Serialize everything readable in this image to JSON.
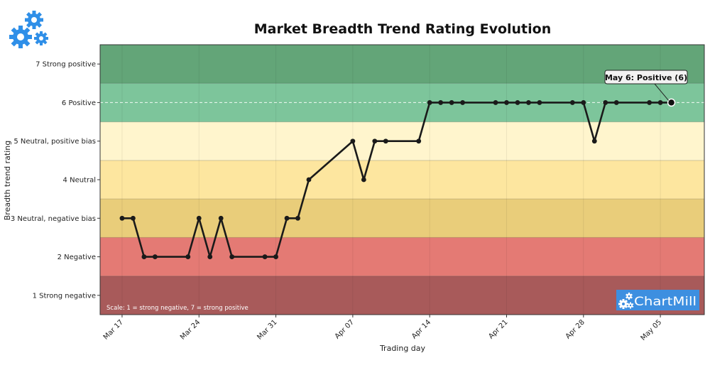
{
  "chart_data": {
    "type": "line",
    "title": "Market Breadth Trend Rating Evolution",
    "xlabel": "Trading day",
    "ylabel": "Breadth trend rating",
    "ylim": [
      0.5,
      7.5
    ],
    "yticks": [
      {
        "value": 1,
        "label": "1  Strong negative"
      },
      {
        "value": 2,
        "label": "2  Negative"
      },
      {
        "value": 3,
        "label": "3  Neutral, negative bias"
      },
      {
        "value": 4,
        "label": "4  Neutral"
      },
      {
        "value": 5,
        "label": "5  Neutral, positive bias"
      },
      {
        "value": 6,
        "label": "6  Positive"
      },
      {
        "value": 7,
        "label": "7  Strong positive"
      }
    ],
    "xticks": [
      {
        "date": "2025-03-17",
        "label": "Mar 17"
      },
      {
        "date": "2025-03-24",
        "label": "Mar 24"
      },
      {
        "date": "2025-03-31",
        "label": "Mar 31"
      },
      {
        "date": "2025-04-07",
        "label": "Apr 07"
      },
      {
        "date": "2025-04-14",
        "label": "Apr 14"
      },
      {
        "date": "2025-04-21",
        "label": "Apr 21"
      },
      {
        "date": "2025-04-28",
        "label": "Apr 28"
      },
      {
        "date": "2025-05-05",
        "label": "May 05"
      }
    ],
    "xlim": [
      "2025-03-15",
      "2025-05-09"
    ],
    "bands": [
      {
        "from": 0.5,
        "to": 1.5,
        "color": "#a85a5a"
      },
      {
        "from": 1.5,
        "to": 2.5,
        "color": "#e47a74"
      },
      {
        "from": 2.5,
        "to": 3.5,
        "color": "#e9cd7a"
      },
      {
        "from": 3.5,
        "to": 4.5,
        "color": "#fde69f"
      },
      {
        "from": 4.5,
        "to": 5.5,
        "color": "#fff5cd"
      },
      {
        "from": 5.5,
        "to": 6.5,
        "color": "#7dc59b"
      },
      {
        "from": 6.5,
        "to": 7.5,
        "color": "#63a578"
      }
    ],
    "series": [
      {
        "color": "#1a1a1a",
        "points": [
          {
            "x": "2025-03-17",
            "y": 3
          },
          {
            "x": "2025-03-18",
            "y": 3
          },
          {
            "x": "2025-03-19",
            "y": 2
          },
          {
            "x": "2025-03-20",
            "y": 2
          },
          {
            "x": "2025-03-23",
            "y": 2
          },
          {
            "x": "2025-03-24",
            "y": 3
          },
          {
            "x": "2025-03-25",
            "y": 2
          },
          {
            "x": "2025-03-26",
            "y": 3
          },
          {
            "x": "2025-03-27",
            "y": 2
          },
          {
            "x": "2025-03-30",
            "y": 2
          },
          {
            "x": "2025-03-31",
            "y": 2
          },
          {
            "x": "2025-04-01",
            "y": 3
          },
          {
            "x": "2025-04-02",
            "y": 3
          },
          {
            "x": "2025-04-03",
            "y": 4
          },
          {
            "x": "2025-04-07",
            "y": 5
          },
          {
            "x": "2025-04-08",
            "y": 4
          },
          {
            "x": "2025-04-09",
            "y": 5
          },
          {
            "x": "2025-04-10",
            "y": 5
          },
          {
            "x": "2025-04-13",
            "y": 5
          },
          {
            "x": "2025-04-14",
            "y": 6
          },
          {
            "x": "2025-04-15",
            "y": 6
          },
          {
            "x": "2025-04-16",
            "y": 6
          },
          {
            "x": "2025-04-17",
            "y": 6
          },
          {
            "x": "2025-04-20",
            "y": 6
          },
          {
            "x": "2025-04-21",
            "y": 6
          },
          {
            "x": "2025-04-22",
            "y": 6
          },
          {
            "x": "2025-04-23",
            "y": 6
          },
          {
            "x": "2025-04-24",
            "y": 6
          },
          {
            "x": "2025-04-27",
            "y": 6
          },
          {
            "x": "2025-04-28",
            "y": 6
          },
          {
            "x": "2025-04-29",
            "y": 5
          },
          {
            "x": "2025-04-30",
            "y": 6
          },
          {
            "x": "2025-05-01",
            "y": 6
          },
          {
            "x": "2025-05-04",
            "y": 6
          },
          {
            "x": "2025-05-05",
            "y": 6
          },
          {
            "x": "2025-05-06",
            "y": 6
          }
        ]
      }
    ],
    "reference_line": {
      "y": 6,
      "style": "dashed",
      "color": "#ffffff"
    },
    "annotation": {
      "text": "May 6: Positive (6)",
      "x": "2025-05-06",
      "y": 6
    },
    "note": "Scale: 1 = strong negative, 7 = strong positive",
    "grid": true
  },
  "brand": {
    "text": "ChartMill",
    "color": "#3d8fe0",
    "icon": "gears-icon",
    "icon_color": "#2f8fe8"
  }
}
